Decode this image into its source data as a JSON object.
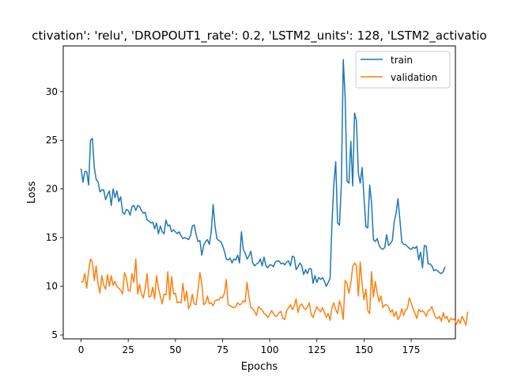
{
  "chart_data": {
    "type": "line",
    "title": "ctivation': 'relu', 'DROPOUT1_rate': 0.2, 'LSTM2_units': 128, 'LSTM2_activatio",
    "xlabel": "Epochs",
    "ylabel": "Loss",
    "xlim": [
      -9.45,
      198.45
    ],
    "ylim": [
      4.6,
      34.7
    ],
    "xticks": [
      0,
      25,
      50,
      75,
      100,
      125,
      150,
      175
    ],
    "yticks": [
      5,
      10,
      15,
      20,
      25,
      30
    ],
    "grid": false,
    "legend_position": "top-right",
    "series": [
      {
        "name": "train",
        "color": "#1f77b4",
        "values": [
          22.1,
          20.7,
          21.8,
          21.8,
          20.4,
          25.0,
          25.2,
          22.2,
          21.0,
          20.7,
          19.7,
          19.9,
          19.9,
          18.9,
          19.4,
          19.8,
          18.3,
          20.0,
          19.1,
          19.8,
          18.7,
          19.2,
          17.6,
          17.4,
          17.9,
          17.8,
          17.3,
          18.2,
          18.3,
          17.8,
          18.3,
          18.2,
          17.8,
          17.5,
          17.6,
          16.8,
          16.7,
          16.5,
          16.6,
          15.9,
          16.5,
          15.4,
          16.2,
          15.6,
          15.4,
          16.8,
          16.2,
          16.3,
          15.6,
          15.8,
          15.6,
          15.4,
          15.6,
          15.2,
          14.9,
          15.0,
          14.9,
          14.8,
          15.2,
          16.2,
          16.3,
          15.3,
          14.6,
          14.7,
          13.2,
          14.2,
          14.6,
          14.8,
          14.3,
          15.6,
          18.4,
          16.2,
          14.9,
          14.7,
          14.6,
          14.2,
          13.6,
          12.8,
          12.7,
          12.9,
          12.4,
          12.8,
          12.7,
          13.2,
          12.4,
          15.6,
          13.8,
          13.4,
          12.8,
          13.1,
          13.6,
          12.4,
          12.1,
          12.3,
          12.4,
          12.8,
          12.1,
          13.0,
          12.1,
          11.9,
          12.2,
          12.2,
          12.0,
          12.5,
          12.6,
          12.6,
          12.3,
          12.4,
          12.2,
          12.5,
          12.6,
          12.1,
          13.1,
          13.0,
          11.7,
          12.0,
          12.4,
          12.1,
          11.2,
          11.7,
          11.3,
          11.8,
          11.8,
          10.3,
          11.1,
          10.4,
          10.9,
          10.7,
          10.9,
          10.5,
          10.0,
          10.4,
          10.8,
          16.4,
          20.5,
          22.8,
          16.5,
          16.3,
          20.5,
          33.3,
          29.4,
          20.8,
          20.6,
          24.9,
          20.3,
          27.8,
          27.0,
          21.6,
          20.6,
          22.2,
          19.1,
          16.1,
          16.0,
          20.4,
          18.6,
          14.8,
          14.6,
          14.9,
          14.2,
          13.9,
          13.8,
          14.0,
          15.3,
          14.2,
          14.4,
          14.7,
          16.6,
          17.5,
          19.0,
          16.9,
          14.6,
          14.3,
          14.3,
          14.1,
          13.9,
          13.8,
          14.0,
          13.9,
          14.1,
          12.7,
          13.5,
          11.9,
          14.2,
          14.1,
          12.3,
          12.3,
          12.1,
          11.6,
          11.7,
          11.6,
          11.4,
          11.3,
          11.5,
          12.0
        ]
      },
      {
        "name": "validation",
        "color": "#ff7f0e",
        "values": [
          10.4,
          10.5,
          11.3,
          9.8,
          11.6,
          12.8,
          12.5,
          10.6,
          12.1,
          10.2,
          9.3,
          11.1,
          10.1,
          9.7,
          11.2,
          10.0,
          11.1,
          10.1,
          10.5,
          10.0,
          9.8,
          9.6,
          9.2,
          11.4,
          10.9,
          9.6,
          9.5,
          11.3,
          10.4,
          12.8,
          9.2,
          10.2,
          9.2,
          8.8,
          9.8,
          11.3,
          8.9,
          9.0,
          9.9,
          8.7,
          11.1,
          9.8,
          9.0,
          8.2,
          9.2,
          9.1,
          11.5,
          8.6,
          11.0,
          9.2,
          9.3,
          8.3,
          8.4,
          8.3,
          10.3,
          8.5,
          9.5,
          7.7,
          8.1,
          9.2,
          8.2,
          8.1,
          9.6,
          11.4,
          10.3,
          8.1,
          8.3,
          9.0,
          8.2,
          8.3,
          8.0,
          8.5,
          8.6,
          8.6,
          8.9,
          8.8,
          9.3,
          10.7,
          8.1,
          8.0,
          7.9,
          7.8,
          7.9,
          8.3,
          8.1,
          8.2,
          8.5,
          8.4,
          10.4,
          8.9,
          7.8,
          7.7,
          7.4,
          7.0,
          7.9,
          7.7,
          7.6,
          7.2,
          7.1,
          6.8,
          7.1,
          7.5,
          7.2,
          6.9,
          7.0,
          7.3,
          7.4,
          6.7,
          6.6,
          7.5,
          7.8,
          8.1,
          7.6,
          8.0,
          8.7,
          7.3,
          8.0,
          8.2,
          7.8,
          7.6,
          7.9,
          8.3,
          7.1,
          6.8,
          7.4,
          7.9,
          7.6,
          7.4,
          7.8,
          7.3,
          6.8,
          7.2,
          6.5,
          7.8,
          8.3,
          7.6,
          7.2,
          8.5,
          7.8,
          6.6,
          10.6,
          10.3,
          9.3,
          10.3,
          12.0,
          12.4,
          12.1,
          9.0,
          12.5,
          10.2,
          8.6,
          9.7,
          7.5,
          7.2,
          11.5,
          8.9,
          10.5,
          9.3,
          8.4,
          9.0,
          7.8,
          8.1,
          8.1,
          7.9,
          7.3,
          7.6,
          6.9,
          7.4,
          6.6,
          6.9,
          7.7,
          7.0,
          7.6,
          7.7,
          8.8,
          8.3,
          7.7,
          7.2,
          6.7,
          7.6,
          7.4,
          7.5,
          7.3,
          6.9,
          7.5,
          7.6,
          7.9,
          7.3,
          6.8,
          6.7,
          6.9,
          6.4,
          7.3,
          6.7,
          6.9,
          6.3,
          6.7,
          6.6,
          6.6,
          6.1,
          6.6,
          6.2,
          6.9,
          6.5,
          6.0,
          7.4
        ]
      }
    ]
  }
}
